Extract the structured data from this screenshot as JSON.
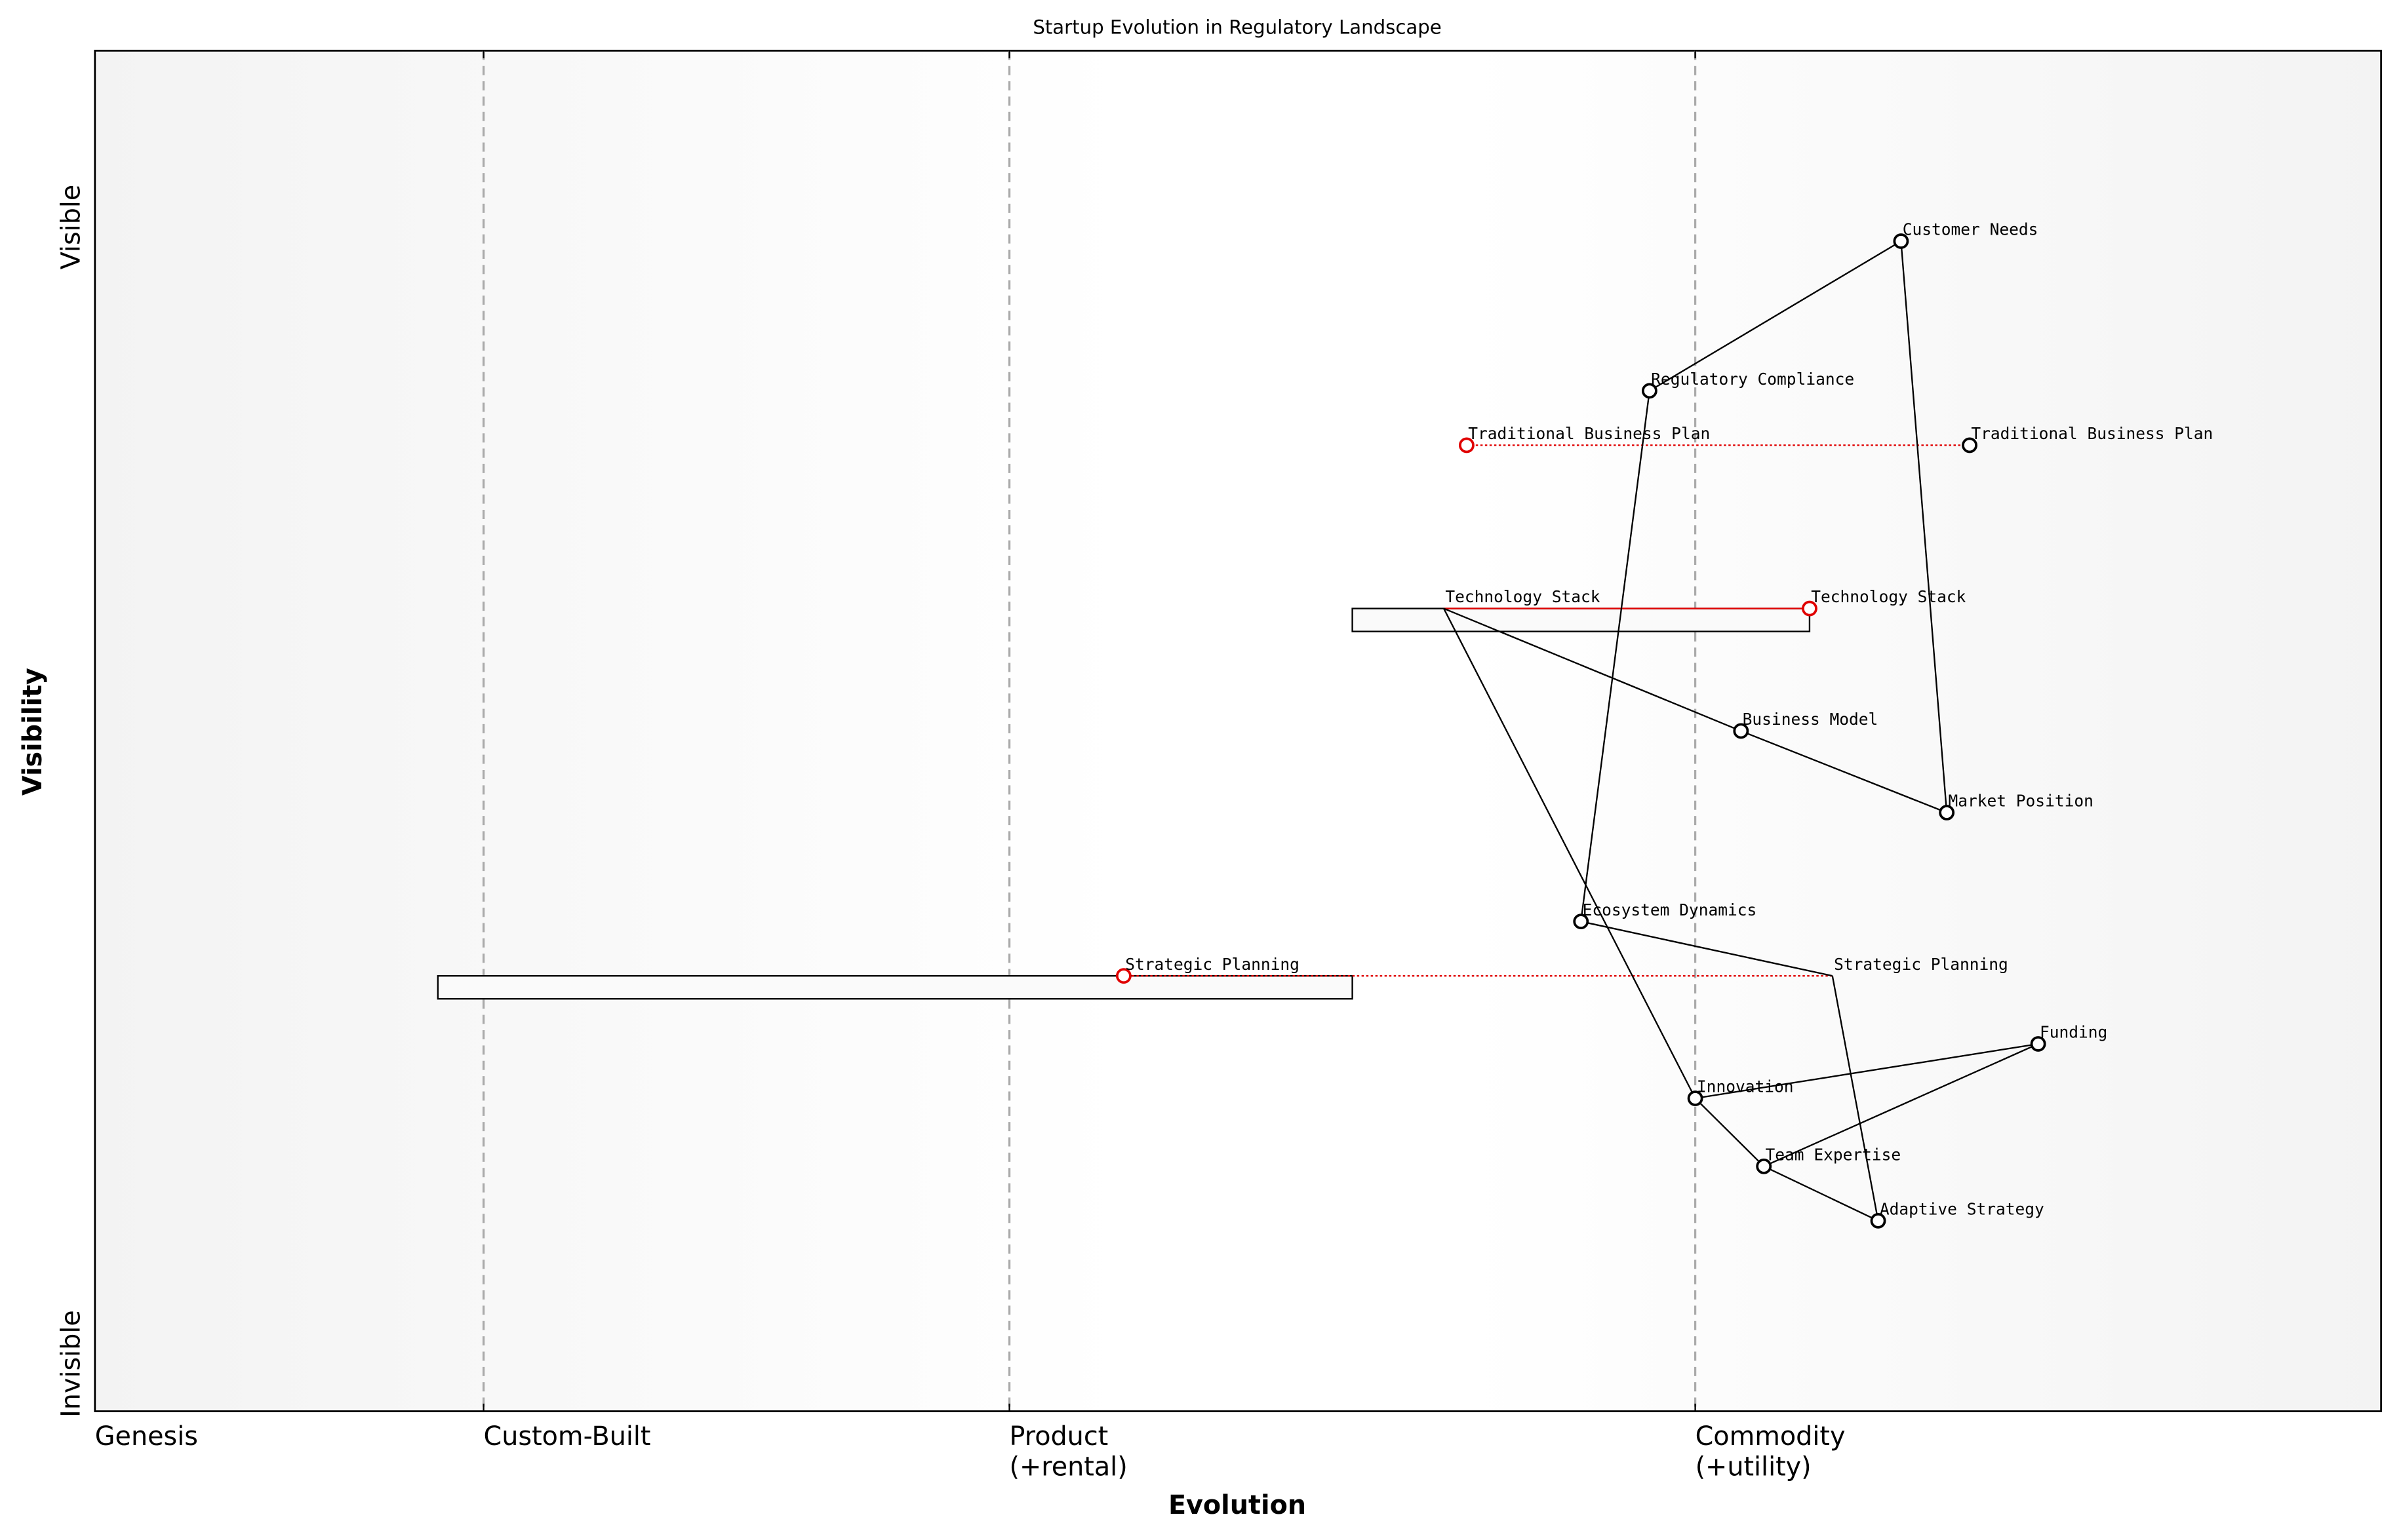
{
  "map": {
    "title": "Startup Evolution in Regulatory Landscape",
    "x_axis_label": "Evolution",
    "y_axis_label": "Visibility",
    "y_top_label": "Visible",
    "y_bottom_label": "Invisible",
    "xlim": [
      0,
      1
    ],
    "ylim": [
      0,
      1
    ],
    "stages": [
      {
        "lines": [
          "Genesis"
        ],
        "evolution": 0
      },
      {
        "lines": [
          "Custom-Built"
        ],
        "evolution": 0.17
      },
      {
        "lines": [
          "Product",
          "(+rental)"
        ],
        "evolution": 0.4
      },
      {
        "lines": [
          "Commodity",
          "(+utility)"
        ],
        "evolution": 0.7
      }
    ],
    "components": [
      {
        "name": "Customer Needs",
        "evolution": 0.79,
        "visibility": 0.86
      },
      {
        "name": "Regulatory Compliance",
        "evolution": 0.68,
        "visibility": 0.75
      },
      {
        "name": "Traditional Business Plan",
        "evolution": 0.82,
        "visibility": 0.71
      },
      {
        "name": "Technology Stack",
        "evolution": 0.59,
        "visibility": 0.59,
        "marker": false
      },
      {
        "name": "Business Model",
        "evolution": 0.72,
        "visibility": 0.5
      },
      {
        "name": "Market Position",
        "evolution": 0.81,
        "visibility": 0.44
      },
      {
        "name": "Ecosystem Dynamics",
        "evolution": 0.65,
        "visibility": 0.36
      },
      {
        "name": "Strategic Planning",
        "evolution": 0.76,
        "visibility": 0.32,
        "marker": false
      },
      {
        "name": "Funding",
        "evolution": 0.85,
        "visibility": 0.27
      },
      {
        "name": "Innovation",
        "evolution": 0.7,
        "visibility": 0.23
      },
      {
        "name": "Team Expertise",
        "evolution": 0.73,
        "visibility": 0.18
      },
      {
        "name": "Adaptive Strategy",
        "evolution": 0.78,
        "visibility": 0.14
      }
    ],
    "links": [
      [
        0,
        1
      ],
      [
        0,
        5
      ],
      [
        1,
        6
      ],
      [
        3,
        4
      ],
      [
        4,
        5
      ],
      [
        3,
        9
      ],
      [
        6,
        7
      ],
      [
        7,
        11
      ],
      [
        9,
        8
      ],
      [
        9,
        10
      ],
      [
        10,
        8
      ],
      [
        10,
        11
      ]
    ],
    "evolutions": [
      {
        "component": 2,
        "label": "Traditional Business Plan",
        "evolution": 0.6,
        "style": "dotted"
      },
      {
        "component": 3,
        "label": "Technology Stack",
        "evolution": 0.75,
        "style": "solid"
      },
      {
        "component": 7,
        "label": "Strategic Planning",
        "evolution": 0.45,
        "style": "dotted"
      }
    ],
    "pipelines": [
      {
        "component": 3,
        "start": 0.55,
        "end": 0.75
      },
      {
        "component": 7,
        "start": 0.15,
        "end": 0.55
      }
    ],
    "evolve_color": "#e00000"
  }
}
